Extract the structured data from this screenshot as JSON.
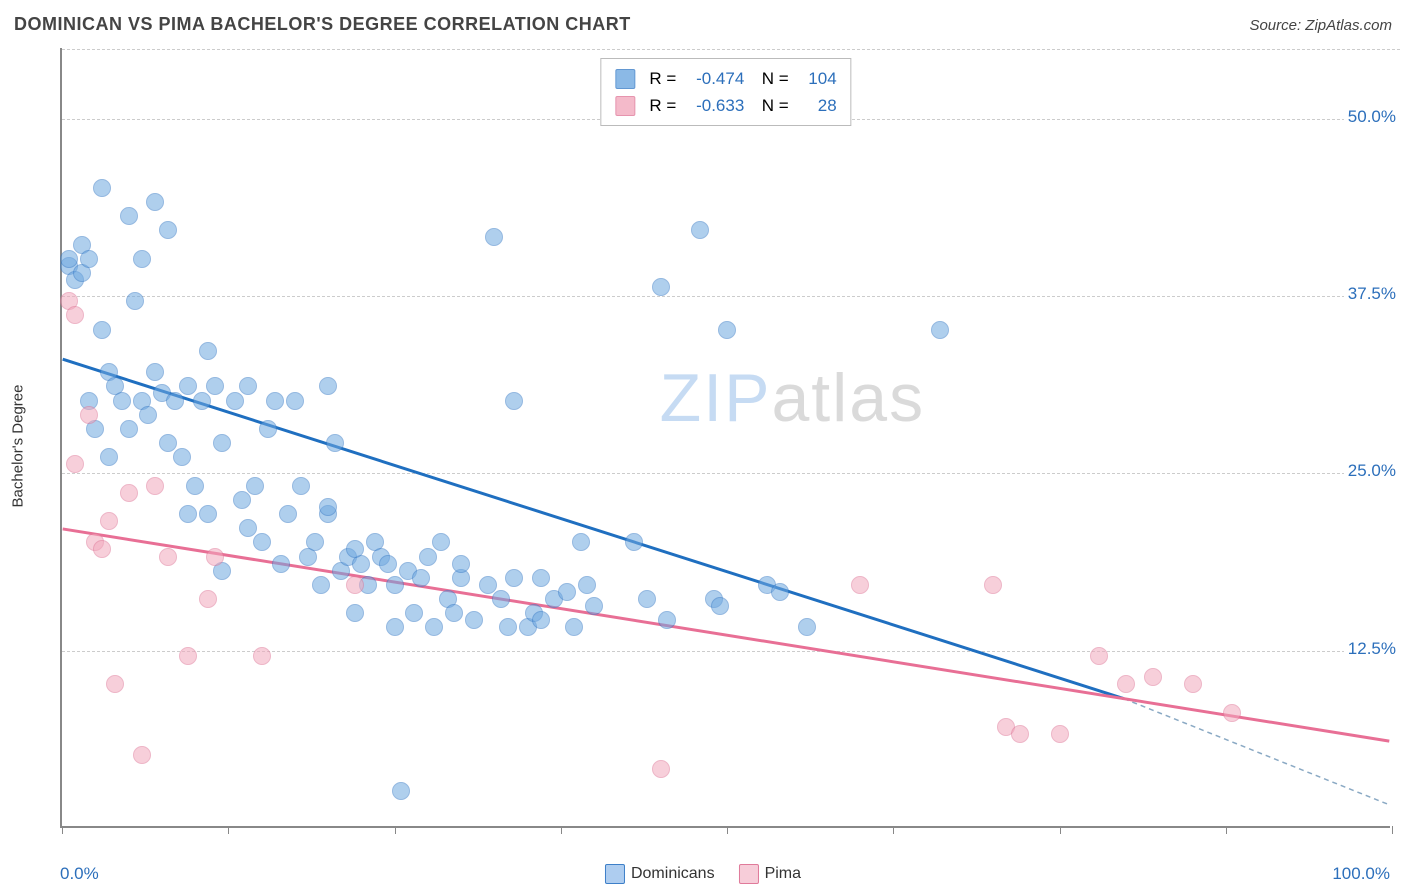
{
  "title": "DOMINICAN VS PIMA BACHELOR'S DEGREE CORRELATION CHART",
  "source_label": "Source: ZipAtlas.com",
  "ylabel": "Bachelor's Degree",
  "xlabel_min": "0.0%",
  "xlabel_max": "100.0%",
  "watermark_a": "ZIP",
  "watermark_b": "atlas",
  "chart": {
    "type": "scatter",
    "background_color": "#ffffff",
    "grid_color": "#cccccc",
    "axis_color": "#888888",
    "tick_label_color": "#2c6fbb",
    "xlim": [
      0,
      100
    ],
    "ylim": [
      0,
      55
    ],
    "yticks": [
      12.5,
      25.0,
      37.5,
      50.0
    ],
    "ytick_labels": [
      "12.5%",
      "25.0%",
      "37.5%",
      "50.0%"
    ],
    "xticks": [
      0,
      12.5,
      25,
      37.5,
      50,
      62.5,
      75,
      87.5,
      100
    ],
    "marker_radius": 9,
    "marker_opacity": 0.55,
    "line_width": 3,
    "series": [
      {
        "name": "Dominicans",
        "color": "#6fa8e0",
        "border": "#3d7fc8",
        "line_color": "#1f6fc0",
        "R": "-0.474",
        "N": "104",
        "trend": {
          "x1": 0,
          "y1": 33,
          "x2": 80,
          "y2": 9,
          "dash_x2": 100,
          "dash_y2": 1.5
        },
        "points": [
          [
            0.5,
            39.5
          ],
          [
            0.5,
            40
          ],
          [
            1,
            38.5
          ],
          [
            1.5,
            39
          ],
          [
            1.5,
            41
          ],
          [
            2,
            40
          ],
          [
            2,
            30
          ],
          [
            2.5,
            28
          ],
          [
            3,
            45
          ],
          [
            3,
            35
          ],
          [
            3.5,
            32
          ],
          [
            3.5,
            26
          ],
          [
            4,
            31
          ],
          [
            4.5,
            30
          ],
          [
            5,
            43
          ],
          [
            5,
            28
          ],
          [
            5.5,
            37
          ],
          [
            6,
            40
          ],
          [
            6,
            30
          ],
          [
            6.5,
            29
          ],
          [
            7,
            44
          ],
          [
            7,
            32
          ],
          [
            7.5,
            30.5
          ],
          [
            8,
            42
          ],
          [
            8,
            27
          ],
          [
            8.5,
            30
          ],
          [
            9,
            26
          ],
          [
            9.5,
            31
          ],
          [
            9.5,
            22
          ],
          [
            10,
            24
          ],
          [
            10.5,
            30
          ],
          [
            11,
            33.5
          ],
          [
            11,
            22
          ],
          [
            11.5,
            31
          ],
          [
            12,
            27
          ],
          [
            12,
            18
          ],
          [
            13,
            30
          ],
          [
            13.5,
            23
          ],
          [
            14,
            31
          ],
          [
            14,
            21
          ],
          [
            14.5,
            24
          ],
          [
            15,
            20
          ],
          [
            15.5,
            28
          ],
          [
            16,
            30
          ],
          [
            16.5,
            18.5
          ],
          [
            17,
            22
          ],
          [
            17.5,
            30
          ],
          [
            18,
            24
          ],
          [
            18.5,
            19
          ],
          [
            19,
            20
          ],
          [
            19.5,
            17
          ],
          [
            20,
            31
          ],
          [
            20,
            22
          ],
          [
            20.5,
            27
          ],
          [
            21,
            18
          ],
          [
            21.5,
            19
          ],
          [
            22,
            15
          ],
          [
            22.5,
            18.5
          ],
          [
            23,
            17
          ],
          [
            23.5,
            20
          ],
          [
            24,
            19
          ],
          [
            24.5,
            18.5
          ],
          [
            25,
            17
          ],
          [
            25,
            14
          ],
          [
            25.5,
            2.5
          ],
          [
            26,
            18
          ],
          [
            26.5,
            15
          ],
          [
            27,
            17.5
          ],
          [
            27.5,
            19
          ],
          [
            28,
            14
          ],
          [
            28.5,
            20
          ],
          [
            29,
            16
          ],
          [
            29.5,
            15
          ],
          [
            30,
            17.5
          ],
          [
            31,
            14.5
          ],
          [
            32,
            17
          ],
          [
            32.5,
            41.5
          ],
          [
            33,
            16
          ],
          [
            33.5,
            14
          ],
          [
            34,
            30
          ],
          [
            35,
            14
          ],
          [
            35.5,
            15
          ],
          [
            36,
            17.5
          ],
          [
            36,
            14.5
          ],
          [
            37,
            16
          ],
          [
            38,
            16.5
          ],
          [
            38.5,
            14
          ],
          [
            39,
            20
          ],
          [
            39.5,
            17
          ],
          [
            40,
            15.5
          ],
          [
            43,
            20
          ],
          [
            44,
            16
          ],
          [
            45,
            38
          ],
          [
            45.5,
            14.5
          ],
          [
            48,
            42
          ],
          [
            49,
            16
          ],
          [
            49.5,
            15.5
          ],
          [
            50,
            35
          ],
          [
            53,
            17
          ],
          [
            54,
            16.5
          ],
          [
            56,
            14
          ],
          [
            66,
            35
          ],
          [
            20,
            22.5
          ],
          [
            22,
            19.5
          ],
          [
            30,
            18.5
          ],
          [
            34,
            17.5
          ]
        ]
      },
      {
        "name": "Pima",
        "color": "#f2a9bd",
        "border": "#e07a9a",
        "line_color": "#e86f95",
        "R": "-0.633",
        "N": "28",
        "trend": {
          "x1": 0,
          "y1": 21,
          "x2": 100,
          "y2": 6
        },
        "points": [
          [
            0.5,
            37
          ],
          [
            1,
            36
          ],
          [
            1,
            25.5
          ],
          [
            2,
            29
          ],
          [
            2.5,
            20
          ],
          [
            3,
            19.5
          ],
          [
            3.5,
            21.5
          ],
          [
            4,
            10
          ],
          [
            5,
            23.5
          ],
          [
            6,
            5
          ],
          [
            7,
            24
          ],
          [
            8,
            19
          ],
          [
            9.5,
            12
          ],
          [
            11,
            16
          ],
          [
            11.5,
            19
          ],
          [
            15,
            12
          ],
          [
            22,
            17
          ],
          [
            45,
            4
          ],
          [
            60,
            17
          ],
          [
            70,
            17
          ],
          [
            71,
            7
          ],
          [
            72,
            6.5
          ],
          [
            75,
            6.5
          ],
          [
            78,
            12
          ],
          [
            80,
            10
          ],
          [
            82,
            10.5
          ],
          [
            85,
            10
          ],
          [
            88,
            8
          ]
        ]
      }
    ]
  },
  "legend_bottom": [
    {
      "label": "Dominicans",
      "fill": "#aecdf0",
      "border": "#3d7fc8"
    },
    {
      "label": "Pima",
      "fill": "#f7cdd9",
      "border": "#e07a9a"
    }
  ]
}
